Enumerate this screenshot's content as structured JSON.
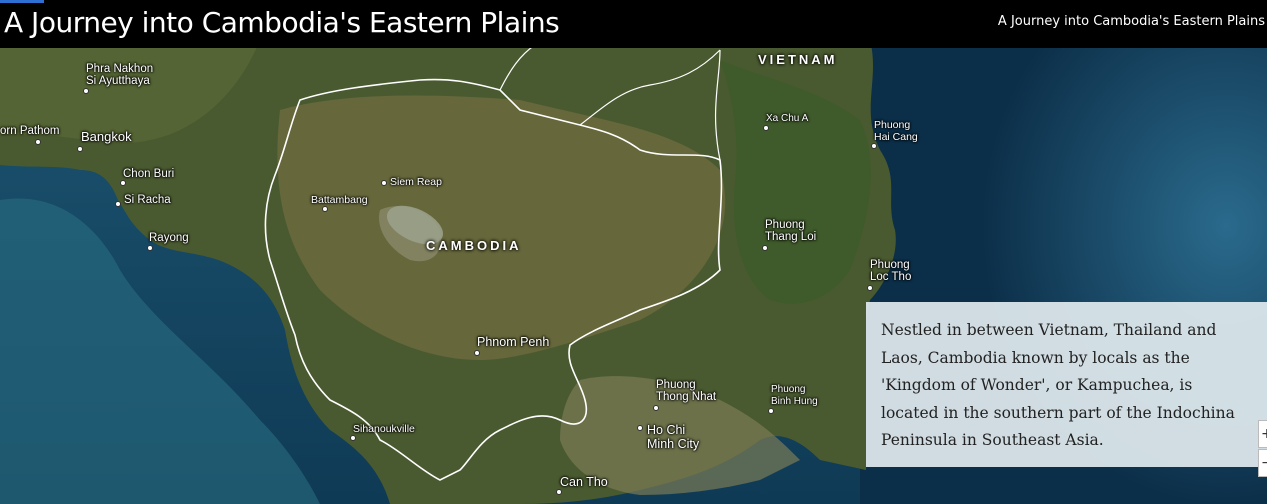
{
  "header": {
    "title": "A Journey into Cambodia's Eastern Plains",
    "subtitle": "A Journey into Cambodia's Eastern Plains"
  },
  "map": {
    "countries": {
      "vietnam": "VIETNAM",
      "cambodia": "CAMBODIA"
    },
    "places": {
      "phra_nakhon": "Phra Nakhon\nSi Ayutthaya",
      "nakhon_pathom": "orn Pathom",
      "bangkok": "Bangkok",
      "chon_buri": "Chon Buri",
      "si_racha": "Si Racha",
      "rayong": "Rayong",
      "battambang": "Battambang",
      "siem_reap": "Siem Reap",
      "phnom_penh": "Phnom Penh",
      "sihanoukville": "Sihanoukville",
      "can_tho": "Can Tho",
      "ho_chi_minh": "Ho Chi\nMinh City",
      "thong_nhat": "Phuong\nThong Nhat",
      "binh_hung": "Phuong\nBinh Hung",
      "xa_chu_a": "Xa Chu A",
      "hai_cang": "Phuong\nHai Cang",
      "thang_loi": "Phuong\nThang Loi",
      "loc_tho": "Phuong\nLoc Tho"
    }
  },
  "panel": {
    "text": "Nestled in between Vietnam, Thailand and Laos, Cambodia known by locals as the 'Kingdom of Wonder', or Kampuchea, is located in the southern part of the Indochina Peninsula in Southeast Asia."
  },
  "controls": {
    "zoom_in": "+",
    "zoom_out": "−"
  },
  "colors": {
    "header_bg": "#000000",
    "accent": "#2d6fd2",
    "panel_bg": "#dde8ec"
  }
}
